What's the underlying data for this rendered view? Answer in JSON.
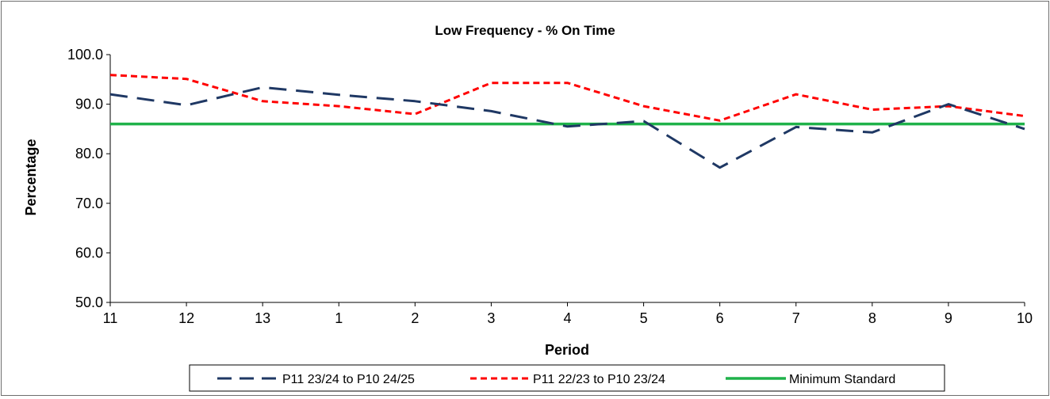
{
  "chart_data": {
    "type": "line",
    "title": "Low Frequency - % On Time",
    "xlabel": "Period",
    "ylabel": "Percentage",
    "categories": [
      "11",
      "12",
      "13",
      "1",
      "2",
      "3",
      "4",
      "5",
      "6",
      "7",
      "8",
      "9",
      "10"
    ],
    "ylim": [
      50,
      100
    ],
    "yticks": [
      "50.0",
      "60.0",
      "70.0",
      "80.0",
      "90.0",
      "100.0"
    ],
    "grid": false,
    "legend_position": "bottom",
    "series": [
      {
        "name": "P11 23/24 to P10 24/25",
        "color": "#1f3864",
        "style": "long-dash",
        "values": [
          92.0,
          89.8,
          93.4,
          91.9,
          90.6,
          88.6,
          85.5,
          86.6,
          77.2,
          85.4,
          84.3,
          90.0,
          85.0
        ]
      },
      {
        "name": "P11 22/23 to P10 23/24",
        "color": "#ff0000",
        "style": "short-dash",
        "values": [
          95.9,
          95.1,
          90.6,
          89.6,
          88.0,
          94.3,
          94.3,
          89.6,
          86.7,
          92.0,
          88.9,
          89.6,
          87.6
        ]
      },
      {
        "name": "Minimum Standard",
        "color": "#1fb24a",
        "style": "solid",
        "values": [
          86,
          86,
          86,
          86,
          86,
          86,
          86,
          86,
          86,
          86,
          86,
          86,
          86
        ]
      }
    ]
  }
}
